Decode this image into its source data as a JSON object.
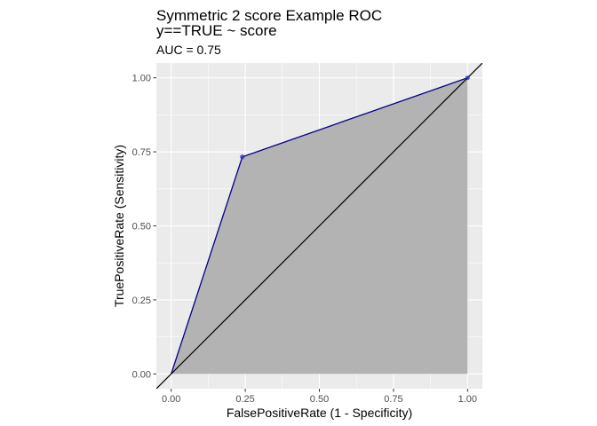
{
  "chart_data": {
    "type": "line",
    "title": "Symmetric 2 score Example ROC",
    "title_line2": "y==TRUE ~ score",
    "subtitle": "AUC = 0.75",
    "xlabel": "FalsePositiveRate (1 - Specificity)",
    "ylabel": "TruePositiveRate (Sensitivity)",
    "xlim": [
      -0.05,
      1.05
    ],
    "ylim": [
      -0.05,
      1.05
    ],
    "x_ticks": [
      0,
      0.25,
      0.5,
      0.75,
      1
    ],
    "y_ticks": [
      0,
      0.25,
      0.5,
      0.75,
      1
    ],
    "x_tick_labels": [
      "0.00",
      "0.25",
      "0.50",
      "0.75",
      "1.00"
    ],
    "y_tick_labels": [
      "0.00",
      "0.25",
      "0.50",
      "0.75",
      "1.00"
    ],
    "grid": true,
    "series": [
      {
        "x": [
          0,
          0.24,
          1
        ],
        "y": [
          0,
          0.733,
          1
        ],
        "markers": [
          false,
          true,
          true
        ]
      }
    ],
    "reference_line": {
      "slope": 1,
      "intercept": 0
    },
    "colors": {
      "roc_line": "#00008b",
      "roc_points": "#2b2bbf",
      "area_fill": "#b3b3b3",
      "diagonal": "#000000",
      "panel_bg": "#ebebeb",
      "grid": "#ffffff"
    }
  }
}
